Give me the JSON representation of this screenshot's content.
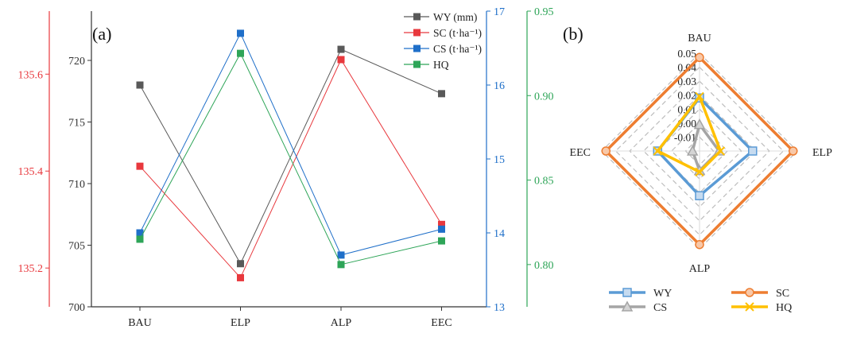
{
  "chart_data": [
    {
      "panel": "(a)",
      "type": "line",
      "categories": [
        "BAU",
        "ELP",
        "ALP",
        "EEC"
      ],
      "series": [
        {
          "name": "WY (mm)",
          "color": "#595959",
          "axis": "WY",
          "values": [
            718.0,
            703.5,
            720.9,
            717.3
          ]
        },
        {
          "name": "SC (t·ha⁻¹)",
          "color": "#e8383d",
          "axis": "SC",
          "values": [
            135.41,
            135.18,
            135.63,
            135.29
          ]
        },
        {
          "name": "CS (t·ha⁻¹)",
          "color": "#1f6fc9",
          "axis": "CS",
          "values": [
            14.0,
            16.7,
            13.7,
            14.05
          ]
        },
        {
          "name": "HQ",
          "color": "#2ea558",
          "axis": "HQ",
          "values": [
            0.815,
            0.925,
            0.8,
            0.814
          ]
        }
      ],
      "axes": {
        "WY": {
          "min": 700,
          "max": 724,
          "ticks": [
            700,
            705,
            710,
            715,
            720
          ],
          "color": "#333333"
        },
        "SC": {
          "min": 135.12,
          "max": 135.73,
          "ticks": [
            "135.2",
            "135.4",
            "135.6"
          ],
          "color": "#e8383d"
        },
        "CS": {
          "min": 13,
          "max": 17,
          "ticks": [
            13,
            14,
            15,
            16,
            17
          ],
          "color": "#1f6fc9"
        },
        "HQ": {
          "min": 0.775,
          "max": 0.95,
          "ticks": [
            "0.80",
            "0.85",
            "0.90",
            "0.95"
          ],
          "color": "#2ea558"
        }
      },
      "legend": {
        "position": "top-right"
      }
    },
    {
      "panel": "(b)",
      "type": "radar",
      "axes": [
        "BAU",
        "ELP",
        "ALP",
        "EEC"
      ],
      "range": [
        -0.02,
        0.05
      ],
      "ticks": [
        "0.05",
        "0.04",
        "0.03",
        "0.02",
        "0.01",
        "0.00",
        "-0.01"
      ],
      "series": [
        {
          "name": "WY",
          "color": "#5b9bd5",
          "marker": "square",
          "values": [
            0.018,
            0.018,
            0.012,
            0.01
          ]
        },
        {
          "name": "SC",
          "color": "#ed7d31",
          "marker": "circle",
          "values": [
            0.047,
            0.047,
            0.047,
            0.047
          ]
        },
        {
          "name": "CS",
          "color": "#a5a5a5",
          "marker": "triangle",
          "values": [
            -0.001,
            -0.006,
            -0.006,
            -0.015
          ]
        },
        {
          "name": "HQ",
          "color": "#ffc000",
          "marker": "x",
          "values": [
            0.019,
            -0.005,
            -0.005,
            0.01
          ]
        }
      ],
      "legend": {
        "position": "bottom"
      }
    }
  ]
}
